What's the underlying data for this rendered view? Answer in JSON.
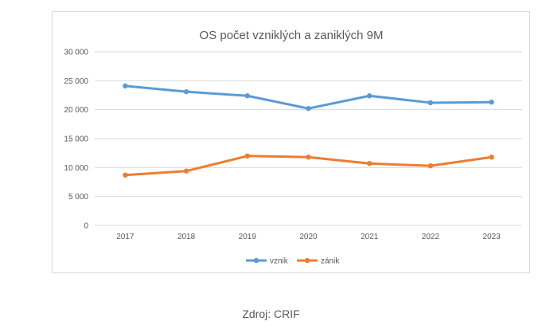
{
  "chart_data": {
    "type": "line",
    "title": "OS počet vzniklých a zaniklých 9M",
    "categories": [
      "2017",
      "2018",
      "2019",
      "2020",
      "2021",
      "2022",
      "2023"
    ],
    "y_ticks": [
      "0",
      "5 000",
      "10 000",
      "15 000",
      "20 000",
      "25 000",
      "30 000"
    ],
    "ylim": [
      0,
      30000
    ],
    "grid": true,
    "legend_position": "bottom",
    "series": [
      {
        "name": "vznik",
        "color": "#5b9bd5",
        "values": [
          24100,
          23100,
          22400,
          20200,
          22400,
          21200,
          21300
        ]
      },
      {
        "name": "zánik",
        "color": "#ed7d31",
        "values": [
          8700,
          9400,
          12000,
          11800,
          10700,
          10300,
          11800
        ]
      }
    ]
  },
  "source": "Zdroj: CRIF"
}
